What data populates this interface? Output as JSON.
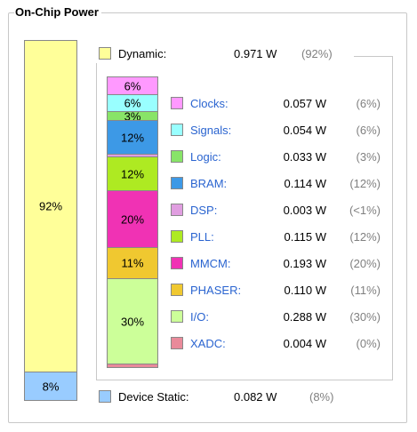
{
  "panel": {
    "title": "On-Chip Power"
  },
  "colors": {
    "dynamic": "#ffff99",
    "static": "#99ccff",
    "border": "#888888",
    "link": "#2a64d0",
    "muted": "#808080"
  },
  "chart_data": {
    "type": "bar",
    "title": "On-Chip Power",
    "total_bar": [
      {
        "name": "Dynamic",
        "percent": 92,
        "label": "92%",
        "color": "#ffff99"
      },
      {
        "name": "Device Static",
        "percent": 8,
        "label": "8%",
        "color": "#99ccff"
      }
    ],
    "dynamic": {
      "label": "Dynamic:",
      "power": "0.971 W",
      "percent": "(92%)"
    },
    "static": {
      "label": "Device Static:",
      "power": "0.082 W",
      "percent": "(8%)"
    },
    "breakdown": [
      {
        "name": "Clocks",
        "label": "Clocks:",
        "power": "0.057 W",
        "percent_text": "(6%)",
        "percent": 6,
        "bar_label": "6%",
        "color": "#ff99ff"
      },
      {
        "name": "Signals",
        "label": "Signals:",
        "power": "0.054 W",
        "percent_text": "(6%)",
        "percent": 6,
        "bar_label": "6%",
        "color": "#99ffff"
      },
      {
        "name": "Logic",
        "label": "Logic:",
        "power": "0.033 W",
        "percent_text": "(3%)",
        "percent": 3,
        "bar_label": "3%",
        "color": "#88e468"
      },
      {
        "name": "BRAM",
        "label": "BRAM:",
        "power": "0.114 W",
        "percent_text": "(12%)",
        "percent": 12,
        "bar_label": "12%",
        "color": "#3d99e6"
      },
      {
        "name": "DSP",
        "label": "DSP:",
        "power": "0.003 W",
        "percent_text": "(<1%)",
        "percent": 1,
        "bar_label": "",
        "color": "#e09ee0"
      },
      {
        "name": "PLL",
        "label": "PLL:",
        "power": "0.115 W",
        "percent_text": "(12%)",
        "percent": 12,
        "bar_label": "12%",
        "color": "#aeea22"
      },
      {
        "name": "MMCM",
        "label": "MMCM:",
        "power": "0.193 W",
        "percent_text": "(20%)",
        "percent": 20,
        "bar_label": "20%",
        "color": "#f032b4"
      },
      {
        "name": "PHASER",
        "label": "PHASER:",
        "power": "0.110 W",
        "percent_text": "(11%)",
        "percent": 11,
        "bar_label": "11%",
        "color": "#f0c830"
      },
      {
        "name": "I/O",
        "label": "I/O:",
        "power": "0.288 W",
        "percent_text": "(30%)",
        "percent": 30,
        "bar_label": "30%",
        "color": "#ccff99"
      },
      {
        "name": "XADC",
        "label": "XADC:",
        "power": "0.004 W",
        "percent_text": "(0%)",
        "percent": 1,
        "bar_label": "",
        "color": "#e98a9a"
      }
    ]
  }
}
